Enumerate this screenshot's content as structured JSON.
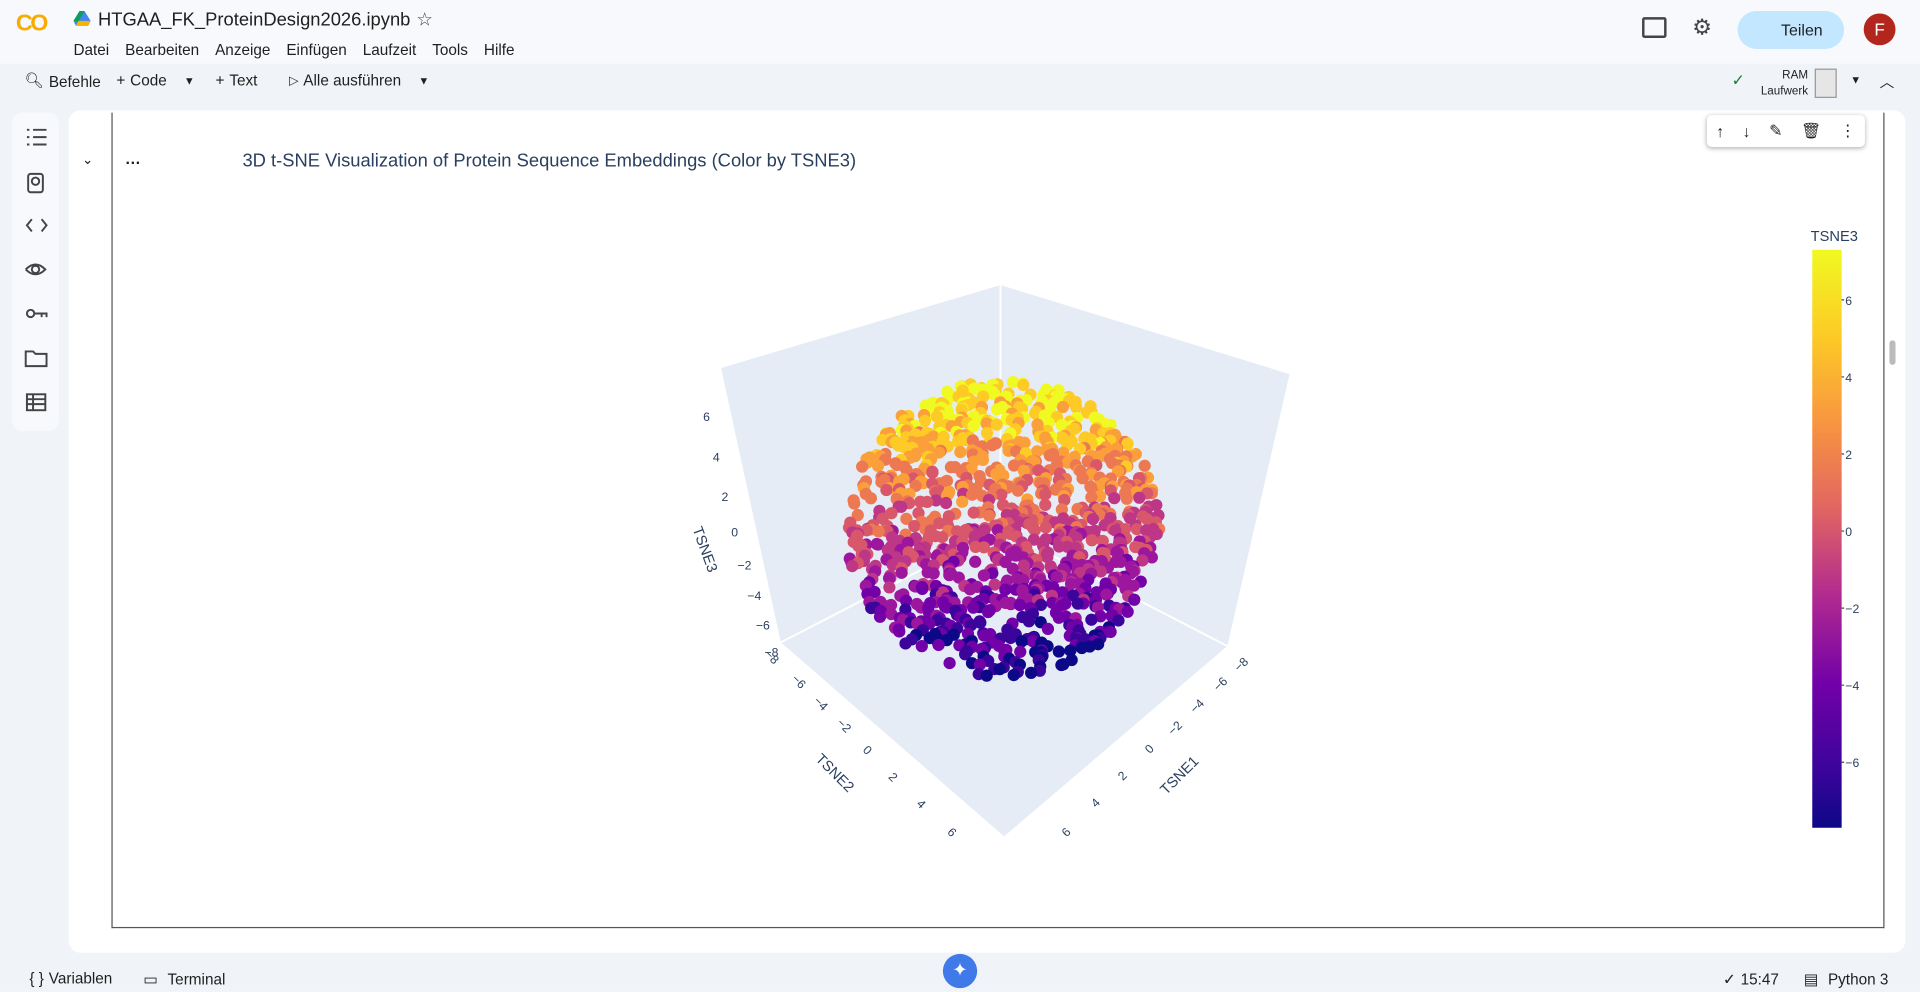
{
  "header": {
    "app_logo": "CO",
    "filename": "HTGAA_FK_ProteinDesign2026.ipynb",
    "menu": [
      "Datei",
      "Bearbeiten",
      "Anzeige",
      "Einfügen",
      "Laufzeit",
      "Tools",
      "Hilfe"
    ],
    "share": "Teilen",
    "avatar": "F"
  },
  "toolbar": {
    "commands": "Befehle",
    "code": "Code",
    "text": "Text",
    "run_all": "Alle ausführen",
    "ram": "RAM",
    "disk": "Laufwerk"
  },
  "cell": {
    "title": "3D t-SNE Visualization of Protein Sequence Embeddings (Color by TSNE3)",
    "x_axis_title": "TSNE1",
    "y_axis_title": "TSNE2",
    "z_axis_title": "TSNE3",
    "z_ticks": [
      {
        "value": 6,
        "label": "6"
      },
      {
        "value": 4,
        "label": "4"
      },
      {
        "value": 2,
        "label": "2"
      },
      {
        "value": 0,
        "label": "0"
      },
      {
        "value": -2,
        "label": "−2"
      },
      {
        "value": -4,
        "label": "−4"
      },
      {
        "value": -6,
        "label": "−6"
      },
      {
        "value": -8,
        "label": "−8"
      }
    ],
    "y_ticks": [
      {
        "value": -8,
        "label": "−8"
      },
      {
        "value": -6,
        "label": "−6"
      },
      {
        "value": -4,
        "label": "−4"
      },
      {
        "value": -2,
        "label": "−2"
      },
      {
        "value": 0,
        "label": "0"
      },
      {
        "value": 2,
        "label": "2"
      },
      {
        "value": 4,
        "label": "4"
      },
      {
        "value": 6,
        "label": "6"
      }
    ],
    "x_ticks": [
      {
        "value": -8,
        "label": "−8"
      },
      {
        "value": -6,
        "label": "−6"
      },
      {
        "value": -4,
        "label": "−4"
      },
      {
        "value": -2,
        "label": "−2"
      },
      {
        "value": 0,
        "label": "0"
      },
      {
        "value": 2,
        "label": "2"
      },
      {
        "value": 4,
        "label": "4"
      },
      {
        "value": 6,
        "label": "6"
      }
    ],
    "colorbar": {
      "title": "TSNE3",
      "lim": [
        -7.7,
        7.3
      ],
      "ticks": [
        {
          "value": 6,
          "label": "6"
        },
        {
          "value": 4,
          "label": "4"
        },
        {
          "value": 2,
          "label": "2"
        },
        {
          "value": 0,
          "label": "0"
        },
        {
          "value": -2,
          "label": "−2"
        },
        {
          "value": -4,
          "label": "−4"
        },
        {
          "value": -6,
          "label": "−6"
        }
      ]
    }
  },
  "status": {
    "variables": "Variablen",
    "terminal": "Terminal",
    "time": "15:47",
    "runtime": "Python 3"
  }
}
